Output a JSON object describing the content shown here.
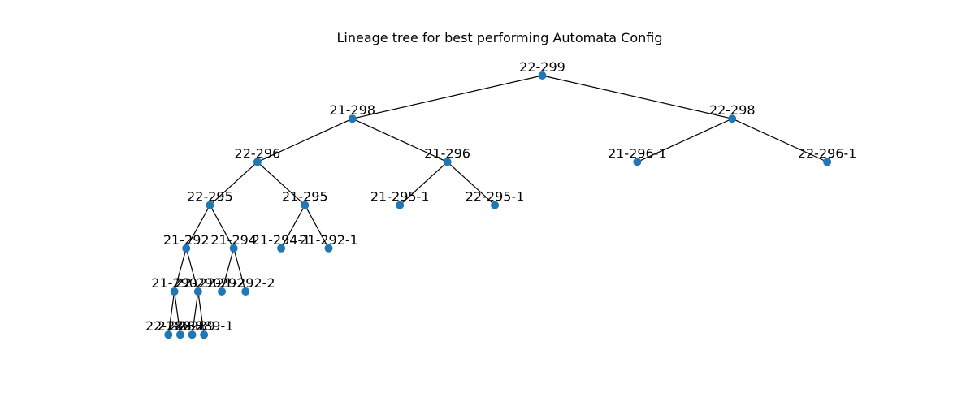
{
  "title": "Lineage tree for best performing Automata Config",
  "colors": {
    "node": "#1f77b4",
    "edge": "#000000",
    "text": "#000000",
    "background": "#ffffff"
  },
  "tree": {
    "nodes": [
      {
        "id": "n0",
        "label": "22-299",
        "parent": null
      },
      {
        "id": "n1",
        "label": "21-298",
        "parent": "n0"
      },
      {
        "id": "n2",
        "label": "22-298",
        "parent": "n0"
      },
      {
        "id": "n3",
        "label": "22-296",
        "parent": "n1"
      },
      {
        "id": "n4",
        "label": "21-296",
        "parent": "n1"
      },
      {
        "id": "n5",
        "label": "21-296-1",
        "parent": "n2"
      },
      {
        "id": "n6",
        "label": "22-296-1",
        "parent": "n2"
      },
      {
        "id": "n7",
        "label": "22-295",
        "parent": "n3"
      },
      {
        "id": "n8",
        "label": "21-295",
        "parent": "n3"
      },
      {
        "id": "n9",
        "label": "21-295-1",
        "parent": "n4"
      },
      {
        "id": "n10",
        "label": "22-295-1",
        "parent": "n4"
      },
      {
        "id": "n11",
        "label": "21-292",
        "parent": "n7"
      },
      {
        "id": "n12",
        "label": "21-294",
        "parent": "n7"
      },
      {
        "id": "n13",
        "label": "21-294-1",
        "parent": "n8"
      },
      {
        "id": "n14",
        "label": "21-292-1",
        "parent": "n8"
      },
      {
        "id": "n15",
        "label": "21-290",
        "parent": "n11"
      },
      {
        "id": "n16",
        "label": "22-290",
        "parent": "n11"
      },
      {
        "id": "n17",
        "label": "22-292",
        "parent": "n12"
      },
      {
        "id": "n18",
        "label": "21-292-2",
        "parent": "n12"
      },
      {
        "id": "n19",
        "label": "22-288",
        "parent": "n15"
      },
      {
        "id": "n20",
        "label": "21-288",
        "parent": "n15"
      },
      {
        "id": "n21",
        "label": "22-289",
        "parent": "n16"
      },
      {
        "id": "n22",
        "label": "22-289-1",
        "parent": "n16"
      }
    ]
  }
}
